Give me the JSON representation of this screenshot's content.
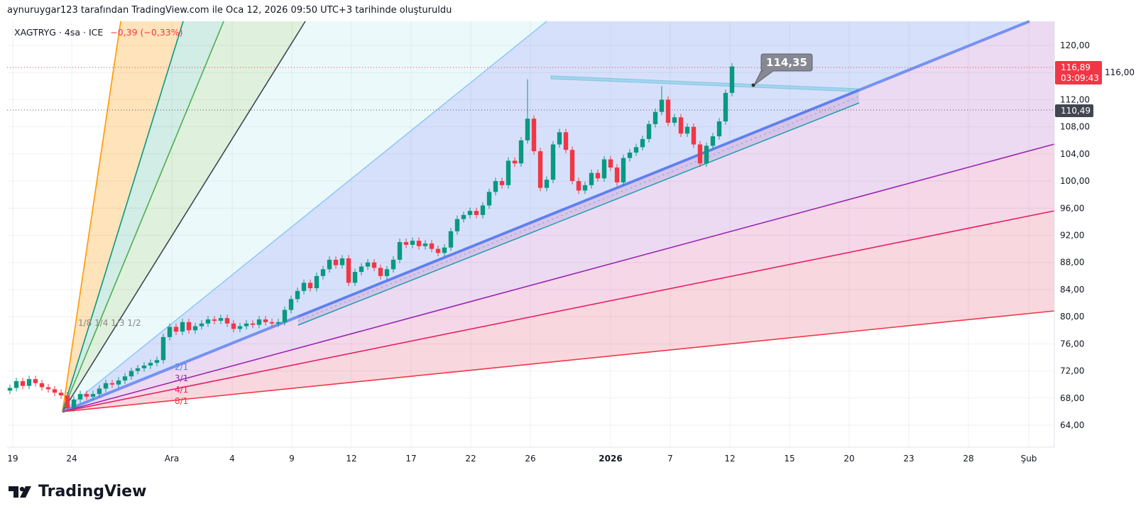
{
  "attribution": "aynuruygar123 tarafından TradingView.com ile Oca 12, 2026 09:50 UTC+3 tarihinde oluşturuldu",
  "legend": {
    "symbol": "XAGTRYG · 4sa · ICE",
    "change": "−0,39 (−0,33%)"
  },
  "brand": "TradingView",
  "chart_data": {
    "type": "candlestick",
    "symbol": "XAGTRYG",
    "interval": "4sa",
    "y_ticks": [
      "120,00",
      "116,00",
      "112,00",
      "108,00",
      "104,00",
      "100,00",
      "96,00",
      "92,00",
      "88,00",
      "84,00",
      "80,00",
      "76,00",
      "72,00",
      "68,00",
      "64,00"
    ],
    "y_tick_values": [
      120,
      116,
      112,
      108,
      104,
      100,
      96,
      92,
      88,
      84,
      80,
      76,
      72,
      68,
      64
    ],
    "x_ticks": [
      "19",
      "24",
      "Ara",
      "4",
      "9",
      "12",
      "17",
      "22",
      "26",
      "2026",
      "7",
      "12",
      "15",
      "20",
      "23",
      "28",
      "Şub"
    ],
    "ylim": [
      60,
      124
    ],
    "grid": true,
    "closes": [
      69.5,
      70.5,
      69.8,
      70.8,
      70.2,
      69.6,
      69.3,
      68.8,
      68.4,
      66.5,
      67.8,
      68.6,
      68.2,
      68.6,
      69.4,
      70.2,
      70.0,
      70.6,
      71.2,
      72.0,
      72.4,
      72.8,
      73.2,
      73.6,
      77.0,
      78.5,
      77.8,
      79.2,
      78.0,
      78.6,
      79.0,
      79.6,
      79.4,
      79.8,
      79.0,
      78.2,
      78.6,
      79.0,
      78.8,
      79.6,
      79.2,
      79.0,
      79.2,
      81.0,
      82.6,
      83.8,
      85.0,
      84.2,
      86.0,
      87.0,
      88.4,
      87.6,
      88.6,
      85.0,
      86.6,
      87.4,
      88.0,
      87.2,
      86.0,
      87.0,
      88.4,
      91.0,
      90.6,
      91.2,
      90.4,
      90.8,
      90.0,
      89.4,
      90.2,
      92.6,
      94.4,
      95.0,
      95.6,
      95.0,
      96.4,
      98.4,
      100.0,
      99.4,
      103.0,
      102.6,
      106.0,
      109.2,
      104.4,
      99.0,
      100.2,
      105.4,
      107.2,
      104.6,
      100.0,
      98.6,
      99.4,
      101.2,
      100.4,
      103.2,
      102.0,
      99.8,
      103.4,
      104.2,
      105.0,
      106.2,
      108.4,
      110.2,
      112.0,
      108.6,
      109.4,
      107.0,
      108.0,
      105.4,
      102.6,
      105.2,
      106.6,
      108.8,
      113.0,
      116.9
    ],
    "notable_highs": {
      "81": 115.0,
      "102": 114.0
    },
    "up_color": "#089981",
    "down_color": "#f23645",
    "last_price": {
      "value": "116,89",
      "countdown": "03:09:43",
      "color": "#f23645"
    },
    "marked_price": {
      "value": "110,49",
      "color": "#434651"
    },
    "callout": {
      "text": "114,35"
    },
    "gann_fan": {
      "upper_labels": "1/8 1/4 1/3 1/2",
      "lower_labels": [
        "2/1",
        "3/1",
        "4/1",
        "8/1"
      ],
      "colors": {
        "1/8": "#ff9800",
        "1/4": "#089981",
        "1/3": "#4caf50",
        "1/2": "#434651",
        "1/1": "#90caf9",
        "2/1": "#5b7ff0",
        "3/1": "#9c27b0",
        "4/1": "#e91e63",
        "8/1": "#f23645"
      }
    }
  }
}
